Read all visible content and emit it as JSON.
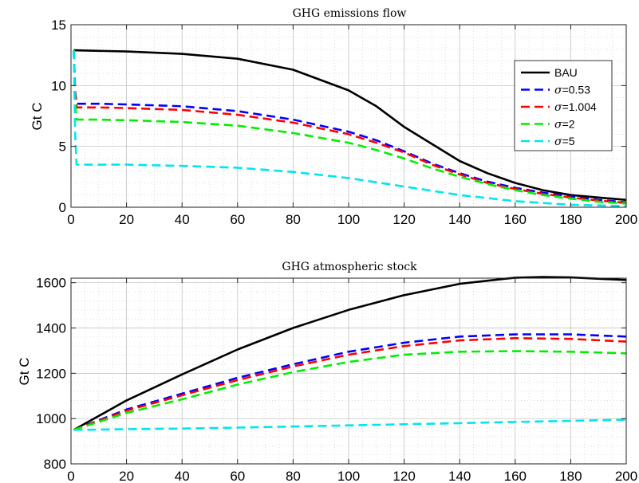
{
  "chart_data": [
    {
      "type": "line",
      "title": "GHG emissions flow",
      "xlabel": "",
      "ylabel": "Gt C",
      "xlim": [
        0,
        200
      ],
      "ylim": [
        0,
        15
      ],
      "xticks": [
        0,
        20,
        40,
        60,
        80,
        100,
        120,
        140,
        160,
        180,
        200
      ],
      "yticks": [
        0,
        5,
        10,
        15
      ],
      "grid": true,
      "legend": {
        "position": "right",
        "entries": [
          {
            "sym": "",
            "text": "BAU"
          },
          {
            "sym": "σ",
            "text": "=0.53"
          },
          {
            "sym": "σ",
            "text": "=1.004"
          },
          {
            "sym": "σ",
            "text": "=2"
          },
          {
            "sym": "σ",
            "text": "=5"
          }
        ]
      },
      "series": [
        {
          "name": "BAU",
          "color": "#000000",
          "dash": "solid",
          "x": [
            1,
            10,
            20,
            40,
            60,
            80,
            100,
            110,
            120,
            130,
            140,
            150,
            160,
            170,
            180,
            190,
            200
          ],
          "y": [
            12.9,
            12.85,
            12.8,
            12.6,
            12.2,
            11.3,
            9.6,
            8.3,
            6.6,
            5.2,
            3.8,
            2.8,
            2.0,
            1.4,
            1.0,
            0.8,
            0.6
          ]
        },
        {
          "name": "σ=0.53",
          "color": "#0000ff",
          "dash": "dashed",
          "x": [
            1,
            1.5,
            2,
            5,
            10,
            20,
            40,
            60,
            80,
            100,
            110,
            120,
            130,
            140,
            150,
            160,
            170,
            180,
            190,
            200
          ],
          "y": [
            12.9,
            9.5,
            8.5,
            8.5,
            8.5,
            8.45,
            8.3,
            7.9,
            7.2,
            6.2,
            5.5,
            4.6,
            3.6,
            2.8,
            2.1,
            1.6,
            1.2,
            0.9,
            0.6,
            0.4
          ]
        },
        {
          "name": "σ=1.004",
          "color": "#ff0000",
          "dash": "dashed",
          "x": [
            1,
            1.5,
            2,
            5,
            10,
            20,
            40,
            60,
            80,
            100,
            110,
            120,
            130,
            140,
            150,
            160,
            170,
            180,
            190,
            200
          ],
          "y": [
            12.9,
            9.3,
            8.2,
            8.2,
            8.2,
            8.15,
            8.0,
            7.6,
            6.95,
            6.0,
            5.3,
            4.5,
            3.5,
            2.7,
            2.0,
            1.5,
            1.1,
            0.8,
            0.55,
            0.35
          ]
        },
        {
          "name": "σ=2",
          "color": "#00ee00",
          "dash": "dashed",
          "x": [
            1,
            1.5,
            2,
            5,
            10,
            20,
            40,
            60,
            80,
            100,
            110,
            120,
            130,
            140,
            150,
            160,
            170,
            180,
            190,
            200
          ],
          "y": [
            12.9,
            8.6,
            7.2,
            7.2,
            7.2,
            7.15,
            7.0,
            6.7,
            6.1,
            5.3,
            4.7,
            4.0,
            3.2,
            2.5,
            1.9,
            1.4,
            1.0,
            0.7,
            0.45,
            0.3
          ]
        },
        {
          "name": "σ=5",
          "color": "#00e5ee",
          "dash": "dashed",
          "x": [
            1,
            1.5,
            2,
            5,
            10,
            20,
            40,
            60,
            80,
            100,
            120,
            140,
            160,
            180,
            200
          ],
          "y": [
            12.9,
            6.0,
            3.5,
            3.5,
            3.5,
            3.5,
            3.4,
            3.25,
            2.9,
            2.4,
            1.7,
            1.0,
            0.5,
            0.2,
            0.1
          ]
        }
      ]
    },
    {
      "type": "line",
      "title": "GHG atmospheric stock",
      "xlabel": "",
      "ylabel": "Gt C",
      "xlim": [
        0,
        200
      ],
      "ylim": [
        800,
        1620
      ],
      "xticks": [
        0,
        20,
        40,
        60,
        80,
        100,
        120,
        140,
        160,
        180,
        200
      ],
      "yticks": [
        800,
        1000,
        1200,
        1400,
        1600
      ],
      "grid": true,
      "series": [
        {
          "name": "BAU",
          "color": "#000000",
          "dash": "solid",
          "x": [
            1,
            20,
            40,
            60,
            80,
            100,
            120,
            140,
            160,
            170,
            180,
            200
          ],
          "y": [
            950,
            1080,
            1195,
            1305,
            1400,
            1480,
            1545,
            1595,
            1622,
            1625,
            1623,
            1612
          ]
        },
        {
          "name": "σ=0.53",
          "color": "#0000ff",
          "dash": "dashed",
          "x": [
            1,
            20,
            40,
            60,
            80,
            100,
            120,
            140,
            160,
            180,
            200
          ],
          "y": [
            950,
            1040,
            1110,
            1180,
            1240,
            1295,
            1335,
            1362,
            1372,
            1372,
            1362
          ]
        },
        {
          "name": "σ=1.004",
          "color": "#ff0000",
          "dash": "dashed",
          "x": [
            1,
            20,
            40,
            60,
            80,
            100,
            120,
            140,
            160,
            180,
            200
          ],
          "y": [
            950,
            1035,
            1103,
            1170,
            1230,
            1282,
            1320,
            1345,
            1355,
            1352,
            1340
          ]
        },
        {
          "name": "σ=2",
          "color": "#00ee00",
          "dash": "dashed",
          "x": [
            1,
            20,
            40,
            60,
            80,
            100,
            120,
            140,
            160,
            180,
            200
          ],
          "y": [
            950,
            1025,
            1085,
            1150,
            1205,
            1250,
            1282,
            1295,
            1298,
            1295,
            1288
          ]
        },
        {
          "name": "σ=5",
          "color": "#00e5ee",
          "dash": "dashed",
          "x": [
            1,
            20,
            40,
            60,
            80,
            100,
            120,
            140,
            160,
            180,
            200
          ],
          "y": [
            950,
            953,
            956,
            960,
            965,
            970,
            975,
            980,
            985,
            990,
            995
          ]
        }
      ]
    }
  ]
}
